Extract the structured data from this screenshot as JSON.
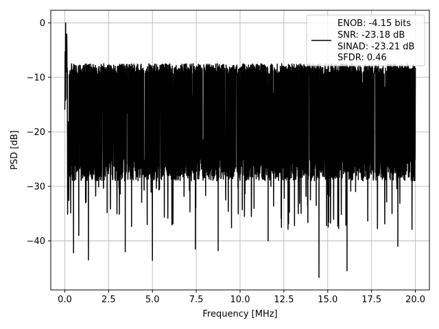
{
  "chart_data": {
    "type": "line",
    "title": "",
    "xlabel": "Frequency [MHz]",
    "ylabel": "PSD [dB]",
    "xlim": [
      -0.8,
      20.8
    ],
    "ylim": [
      -49,
      2.3
    ],
    "grid": true,
    "legend_placement": "top-right",
    "x_ticks": [
      0.0,
      2.5,
      5.0,
      7.5,
      10.0,
      12.5,
      15.0,
      17.5,
      20.0
    ],
    "x_tick_labels": [
      "0.0",
      "2.5",
      "5.0",
      "7.5",
      "10.0",
      "12.5",
      "15.0",
      "17.5",
      "20.0"
    ],
    "y_ticks": [
      0,
      -10,
      -20,
      -30,
      -40
    ],
    "y_tick_labels": [
      "0",
      "−10",
      "−20",
      "−30",
      "−40"
    ],
    "series": [
      {
        "name": "",
        "color": "#000000",
        "x_range": [
          0,
          20
        ],
        "peak": {
          "x": 0.05,
          "y": 0.0
        },
        "typical_max": -8,
        "typical_min": -28,
        "dips": [
          {
            "x": 0.5,
            "y": -42.2
          },
          {
            "x": 0.8,
            "y": -39.0
          },
          {
            "x": 1.35,
            "y": -43.5
          },
          {
            "x": 3.45,
            "y": -42.0
          },
          {
            "x": 5.0,
            "y": -43.6
          },
          {
            "x": 7.45,
            "y": -41.5
          },
          {
            "x": 8.75,
            "y": -41.8
          },
          {
            "x": 11.6,
            "y": -40.0
          },
          {
            "x": 14.5,
            "y": -46.7
          },
          {
            "x": 16.1,
            "y": -45.5
          },
          {
            "x": 19.0,
            "y": -41.0
          }
        ]
      }
    ],
    "legend": {
      "lines": [
        "ENOB: -4.15 bits",
        "SNR: -23.18 dB",
        "SINAD: -23.21 dB",
        "SFDR: 0.46"
      ]
    }
  }
}
